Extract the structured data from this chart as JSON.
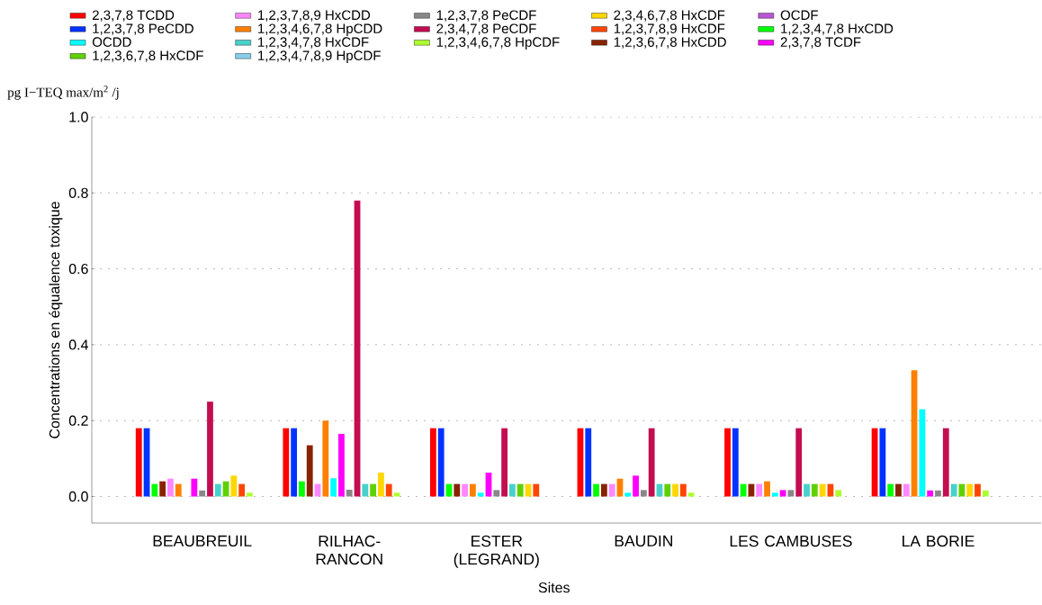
{
  "chart_data": {
    "type": "bar",
    "xlabel": "Sites",
    "ylabel": "Concentrations en équalence toxique",
    "annotations": [
      "pg I−TEQ max/m$^{2}$ /j"
    ],
    "categories": [
      "BEAUBREUIL",
      "RILHAC-RANCON",
      "ESTER (LEGRAND)",
      "BAUDIN",
      "LES CAMBUSES",
      "LA BORIE"
    ],
    "ylim": [
      -0.07,
      1.0
    ],
    "yticks": [
      {
        "value": 0,
        "label": "0.0"
      },
      {
        "value": 0.2,
        "label": "0.2"
      },
      {
        "value": 0.4,
        "label": "0.4"
      },
      {
        "value": 0.6,
        "label": "0.6"
      },
      {
        "value": 0.8,
        "label": "0.8"
      },
      {
        "value": 1.0,
        "label": "1.0"
      }
    ],
    "grid": "y",
    "legend": "top",
    "series": [
      {
        "name": "2,3,7,8 TCDD",
        "color": "#ff0000",
        "values": [
          0.18,
          0.18,
          0.18,
          0.18,
          0.18,
          0.18
        ]
      },
      {
        "name": "1,2,3,7,8 PeCDD",
        "color": "#0033ff",
        "values": [
          0.18,
          0.18,
          0.18,
          0.18,
          0.18,
          0.18
        ]
      },
      {
        "name": "1,2,3,4,7,8 HxCDD",
        "color": "#00ff00",
        "values": [
          0.033,
          0.04,
          0.033,
          0.033,
          0.033,
          0.033
        ]
      },
      {
        "name": "1,2,3,6,7,8 HxCDD",
        "color": "#882200",
        "values": [
          0.04,
          0.135,
          0.033,
          0.033,
          0.033,
          0.033
        ]
      },
      {
        "name": "1,2,3,7,8,9 HxCDD",
        "color": "#ff88ff",
        "values": [
          0.047,
          0.033,
          0.033,
          0.033,
          0.033,
          0.033
        ]
      },
      {
        "name": "1,2,3,4,6,7,8 HpCDD",
        "color": "#ff8000",
        "values": [
          0.033,
          0.2,
          0.033,
          0.047,
          0.04,
          0.333
        ]
      },
      {
        "name": "OCDD",
        "color": "#00ffff",
        "values": [
          null,
          0.048,
          0.01,
          0.01,
          0.01,
          0.23
        ]
      },
      {
        "name": "2,3,7,8 TCDF",
        "color": "#ff00ff",
        "values": [
          0.047,
          0.165,
          0.063,
          0.055,
          0.017,
          0.016
        ]
      },
      {
        "name": "1,2,3,7,8 PeCDF",
        "color": "#888888",
        "values": [
          0.016,
          0.018,
          0.017,
          0.017,
          0.017,
          0.016
        ]
      },
      {
        "name": "2,3,4,7,8 PeCDF",
        "color": "#c40c50",
        "values": [
          0.25,
          0.78,
          0.18,
          0.18,
          0.18,
          0.18
        ]
      },
      {
        "name": "1,2,3,4,7,8 HxCDF",
        "color": "#48d1cc",
        "values": [
          0.033,
          0.033,
          0.033,
          0.033,
          0.033,
          0.033
        ]
      },
      {
        "name": "1,2,3,6,7,8 HxCDF",
        "color": "#5fd100",
        "values": [
          0.04,
          0.033,
          0.033,
          0.033,
          0.033,
          0.033
        ]
      },
      {
        "name": "2,3,4,6,7,8 HxCDF",
        "color": "#ffd700",
        "values": [
          0.055,
          0.063,
          0.033,
          0.033,
          0.033,
          0.033
        ]
      },
      {
        "name": "1,2,3,7,8,9 HxCDF",
        "color": "#ff4500",
        "values": [
          0.033,
          0.033,
          0.033,
          0.033,
          0.033,
          0.033
        ]
      },
      {
        "name": "1,2,3,4,6,7,8 HpCDF",
        "color": "#adff2f",
        "values": [
          0.01,
          0.01,
          null,
          0.01,
          0.017,
          0.016
        ]
      },
      {
        "name": "1,2,3,4,7,8,9 HpCDF",
        "color": "#87ceeb",
        "values": [
          null,
          null,
          null,
          null,
          null,
          null
        ]
      },
      {
        "name": "OCDF",
        "color": "#ba55d3",
        "values": [
          null,
          null,
          null,
          null,
          null,
          null
        ]
      }
    ]
  }
}
